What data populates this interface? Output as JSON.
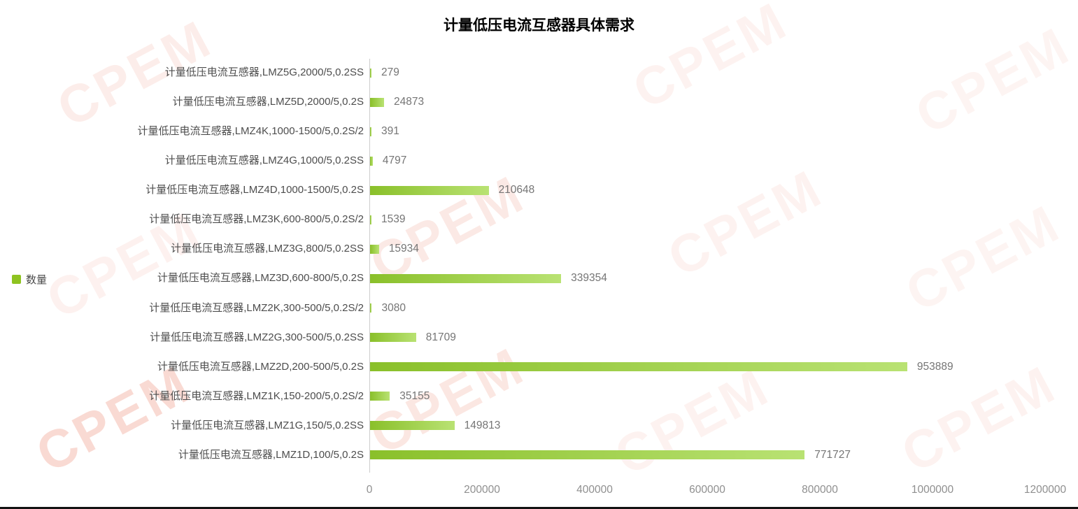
{
  "title": "计量低压电流互感器具体需求",
  "watermark": {
    "text": "CPEM"
  },
  "legend": {
    "label": "数量",
    "color": "#8ec320"
  },
  "chart_data": {
    "type": "bar",
    "orientation": "horizontal",
    "title": "计量低压电流互感器具体需求",
    "series_name": "数量",
    "legend_position": "left",
    "grid": false,
    "xlabel": "",
    "ylabel": "",
    "xlim": [
      0,
      1200000
    ],
    "xticks": [
      0,
      200000,
      400000,
      600000,
      800000,
      1000000,
      1200000
    ],
    "bar_gradient": [
      "#8ac02a",
      "#b9e273"
    ],
    "categories": [
      "计量低压电流互感器,LMZ5G,2000/5,0.2SS",
      "计量低压电流互感器,LMZ5D,2000/5,0.2S",
      "计量低压电流互感器,LMZ4K,1000-1500/5,0.2S/2",
      "计量低压电流互感器,LMZ4G,1000/5,0.2SS",
      "计量低压电流互感器,LMZ4D,1000-1500/5,0.2S",
      "计量低压电流互感器,LMZ3K,600-800/5,0.2S/2",
      "计量低压电流互感器,LMZ3G,800/5,0.2SS",
      "计量低压电流互感器,LMZ3D,600-800/5,0.2S",
      "计量低压电流互感器,LMZ2K,300-500/5,0.2S/2",
      "计量低压电流互感器,LMZ2G,300-500/5,0.2SS",
      "计量低压电流互感器,LMZ2D,200-500/5,0.2S",
      "计量低压电流互感器,LMZ1K,150-200/5,0.2S/2",
      "计量低压电流互感器,LMZ1G,150/5,0.2SS",
      "计量低压电流互感器,LMZ1D,100/5,0.2S"
    ],
    "values": [
      279,
      24873,
      391,
      4797,
      210648,
      1539,
      15934,
      339354,
      3080,
      81709,
      953889,
      35155,
      149813,
      771727
    ]
  }
}
